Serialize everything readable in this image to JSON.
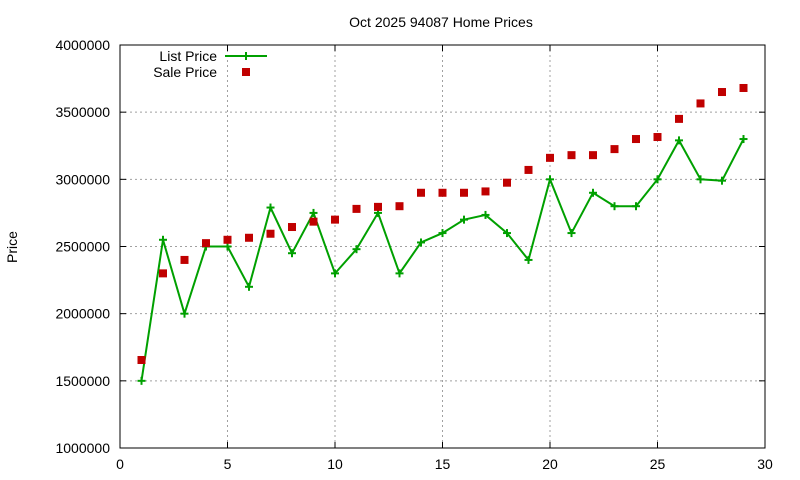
{
  "chart_data": {
    "type": "line",
    "title": "Oct 2025 94087 Home Prices",
    "xlabel": "",
    "ylabel": "Price",
    "xlim": [
      0,
      30
    ],
    "ylim": [
      1000000,
      4000000
    ],
    "x_ticks": [
      0,
      5,
      10,
      15,
      20,
      25,
      30
    ],
    "y_ticks": [
      1000000,
      1500000,
      2000000,
      2500000,
      3000000,
      3500000,
      4000000
    ],
    "x_tick_labels": [
      "0",
      "5",
      "10",
      "15",
      "20",
      "25",
      "30"
    ],
    "y_tick_labels": [
      "1000000",
      "1500000",
      "2000000",
      "2500000",
      "3000000",
      "3500000",
      "4000000"
    ],
    "grid": true,
    "legend_position": "top-left",
    "series": [
      {
        "name": "List Price",
        "style": "lines+points",
        "marker": "plus",
        "color": "#00a000",
        "x": [
          1,
          2,
          3,
          4,
          5,
          6,
          7,
          8,
          9,
          10,
          11,
          12,
          13,
          14,
          15,
          16,
          17,
          18,
          19,
          20,
          21,
          22,
          23,
          24,
          25,
          26,
          27,
          28,
          29
        ],
        "y": [
          1500000,
          2550000,
          2000000,
          2500000,
          2500000,
          2200000,
          2790000,
          2450000,
          2750000,
          2300000,
          2480000,
          2750000,
          2300000,
          2530000,
          2600000,
          2700000,
          2735000,
          2600000,
          2400000,
          3000000,
          2600000,
          2900000,
          2800000,
          2800000,
          3000000,
          3290000,
          3000000,
          2990000,
          3300000
        ]
      },
      {
        "name": "Sale Price",
        "style": "points",
        "marker": "square",
        "color": "#c00000",
        "x": [
          1,
          2,
          3,
          4,
          5,
          6,
          7,
          8,
          9,
          10,
          11,
          12,
          13,
          14,
          15,
          16,
          17,
          18,
          19,
          20,
          21,
          22,
          23,
          24,
          25,
          26,
          27,
          28,
          29
        ],
        "y": [
          1655000,
          2300000,
          2400000,
          2525000,
          2550000,
          2565000,
          2595000,
          2645000,
          2685000,
          2700000,
          2780000,
          2795000,
          2800000,
          2900000,
          2900000,
          2900000,
          2910000,
          2975000,
          3070000,
          3160000,
          3180000,
          3180000,
          3225000,
          3300000,
          3315000,
          3450000,
          3565000,
          3650000,
          3680000
        ]
      }
    ]
  }
}
